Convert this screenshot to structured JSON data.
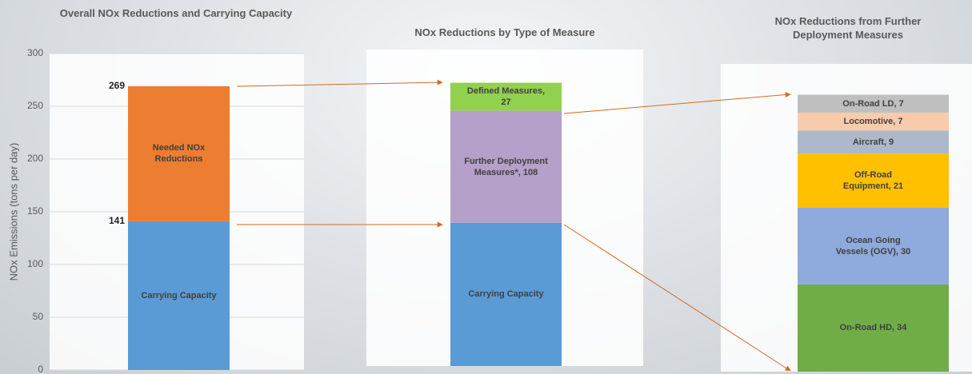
{
  "chart_data": [
    {
      "type": "bar",
      "title": "Overall NOx Reductions and Carrying Capacity",
      "y_label": "NOx Emissions (tons per day)",
      "ylim": [
        0,
        300
      ],
      "yticks": [
        0,
        50,
        100,
        150,
        200,
        250,
        300
      ],
      "grid": true,
      "stacked": true,
      "series": [
        {
          "name": "Carrying Capacity",
          "color": "#5b9bd5",
          "values": [
            141
          ]
        },
        {
          "name": "Needed NOx Reductions",
          "color": "#ed7d31",
          "values": [
            128
          ]
        }
      ],
      "stack_labels": [
        141,
        269
      ]
    },
    {
      "type": "bar",
      "title": "NOx Reductions by Type of Measure",
      "ylim": [
        0,
        305
      ],
      "stacked": true,
      "series": [
        {
          "name": "Carrying Capacity",
          "color": "#5b9bd5",
          "values": [
            138
          ]
        },
        {
          "color": "#b4a0c8",
          "values": [
            108
          ],
          "value_labels": [
            "Further Deployment Measures*, 108"
          ]
        },
        {
          "color": "#92d050",
          "values": [
            27
          ],
          "value_labels": [
            "Defined Measures, 27"
          ]
        }
      ]
    },
    {
      "type": "bar",
      "title": "NOx Reductions from Further Deployment Measures",
      "ylim": [
        0,
        120
      ],
      "stacked": true,
      "series": [
        {
          "color": "#70ad47",
          "values": [
            34
          ],
          "value_labels": [
            "On-Road HD, 34"
          ]
        },
        {
          "color": "#8faadc",
          "values": [
            30
          ],
          "value_labels": [
            "Ocean Going Vessels (OGV), 30"
          ]
        },
        {
          "color": "#ffc000",
          "values": [
            21
          ],
          "value_labels": [
            "Off-Road Equipment, 21"
          ]
        },
        {
          "color": "#adb9ca",
          "values": [
            9
          ],
          "value_labels": [
            "Aircraft, 9"
          ]
        },
        {
          "color": "#f8cbad",
          "values": [
            7
          ],
          "value_labels": [
            "Locomotive, 7"
          ]
        },
        {
          "color": "#bfbfbf",
          "values": [
            7
          ],
          "value_labels": [
            "On-Road LD, 7"
          ]
        }
      ]
    }
  ]
}
